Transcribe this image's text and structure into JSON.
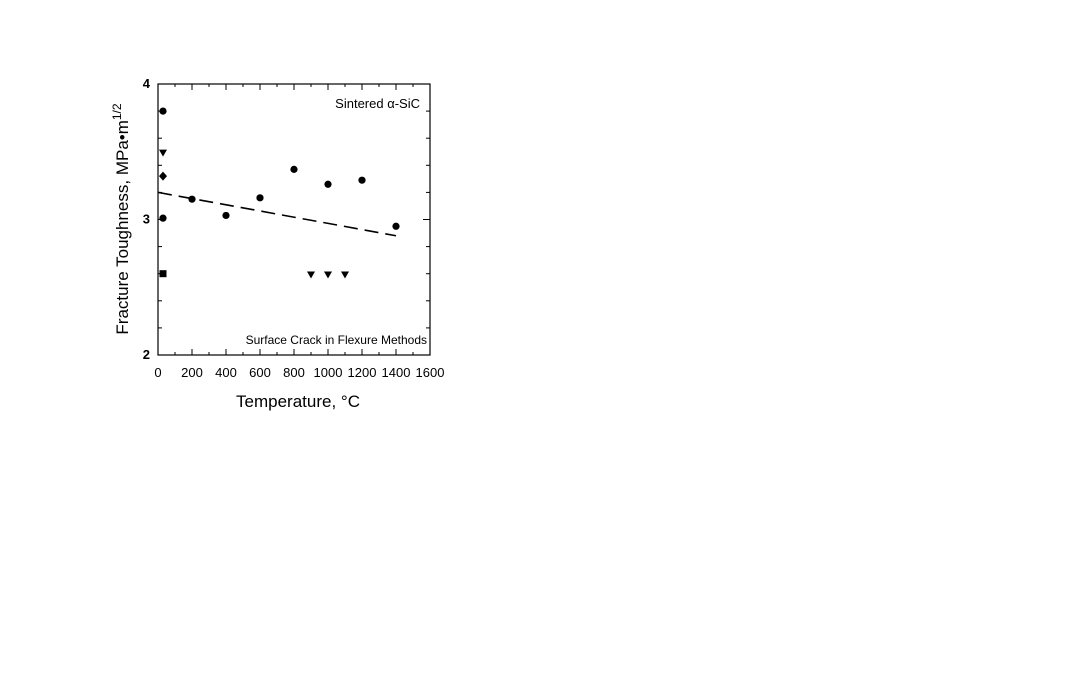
{
  "chart_data": {
    "type": "scatter",
    "title": "",
    "xlabel": "Temperature, °C",
    "ylabel": "Fracture Toughness, MPa•m",
    "ylabel_superscript": "1/2",
    "xlim": [
      0,
      1600
    ],
    "ylim": [
      2,
      4
    ],
    "x_ticks": [
      "0",
      "200",
      "400",
      "600",
      "800",
      "1000",
      "1200",
      "1400",
      "1600"
    ],
    "y_ticks": [
      "2",
      "3",
      "4"
    ],
    "grid": false,
    "annotations": [
      "Sintered α-SiC",
      "Surface Crack in Flexure Methods"
    ],
    "series": [
      {
        "marker": "circle",
        "x": [
          25,
          25,
          200,
          400,
          600,
          800,
          1000,
          1200,
          1400
        ],
        "y": [
          3.8,
          3.01,
          3.15,
          3.03,
          3.16,
          3.37,
          3.26,
          3.29,
          2.95
        ]
      },
      {
        "marker": "triangle-down",
        "x": [
          25,
          900,
          1000,
          1100
        ],
        "y": [
          3.49,
          2.59,
          2.59,
          2.59
        ]
      },
      {
        "marker": "diamond",
        "x": [
          25
        ],
        "y": [
          3.32
        ]
      },
      {
        "marker": "square",
        "x": [
          25
        ],
        "y": [
          2.6
        ]
      }
    ],
    "trend_line": {
      "style": "dashed",
      "x": [
        0,
        1400
      ],
      "y": [
        3.2,
        2.88
      ]
    }
  }
}
